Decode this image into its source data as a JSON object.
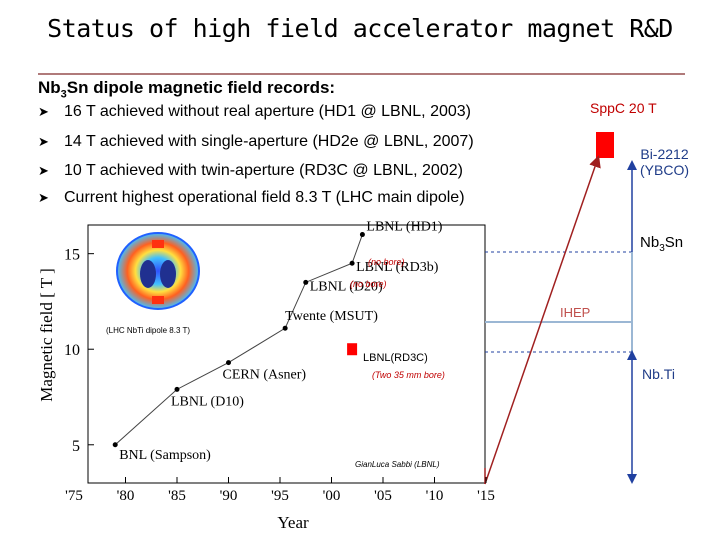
{
  "slide": {
    "title": "Status of high field accelerator magnet R&D",
    "subtitle_main": "Nb",
    "subtitle_sub": "3",
    "subtitle_rest": "Sn dipole magnetic field records:",
    "bullets": [
      "16 T achieved without real aperture (HD1 @ LBNL, 2003)",
      "14 T achieved with single-aperture (HD2e @ LBNL, 2007)",
      "10 T achieved with twin-aperture (RD3C @ LBNL, 2002)",
      "Current highest operational field 8.3 T (LHC main dipole)"
    ]
  },
  "right_panel": {
    "sppc": "SppC 20 T",
    "bi_line1": "Bi-2212",
    "bi_line2": "(YBCO)",
    "nb3sn_main": "Nb",
    "nb3sn_sub": "3",
    "nb3sn_rest": "Sn",
    "ihep": "IHEP",
    "nbti": "Nb.Ti",
    "colors": {
      "red": "#ff0000",
      "sppc_text": "#c00000",
      "blue_text": "#1f3c88",
      "ihep": "#c0504d"
    }
  },
  "chart_data": {
    "type": "scatter",
    "xlabel": "Year",
    "ylabel": "Magnetic field [ T ]",
    "x_ticks": [
      "'75",
      "'80",
      "'85",
      "'90",
      "'95",
      "'00",
      "'05",
      "'10",
      "'15"
    ],
    "y_ticks": [
      "5",
      "10",
      "15"
    ],
    "xlim": [
      1975,
      2015
    ],
    "ylim": [
      3,
      16.5
    ],
    "series": [
      {
        "points": [
          {
            "x": 1979,
            "y": 5.0,
            "label": "BNL (Sampson)"
          },
          {
            "x": 1985,
            "y": 7.9,
            "label": "LBNL (D10)"
          },
          {
            "x": 1990,
            "y": 9.3,
            "label": "CERN (Asner)"
          },
          {
            "x": 1995.5,
            "y": 11.1,
            "label": "Twente (MSUT)"
          },
          {
            "x": 1997.5,
            "y": 13.5,
            "label": "LBNL (D20)"
          },
          {
            "x": 2002,
            "y": 14.5,
            "label": "LBNL (RD3b)"
          },
          {
            "x": 2003,
            "y": 16.0,
            "label": "LBNL (HD1)"
          }
        ]
      }
    ],
    "highlight": {
      "x": 2002,
      "y": 10.0,
      "label": "LBNL(RD3C)",
      "note": "(Two 35 mm bore)"
    },
    "annotations": {
      "no_bore_1": "(no bore)",
      "no_bore_2": "(no bore)",
      "lhc": "(LHC NbTi dipole 8.3 T)",
      "credit": "GianLuca Sabbi (LBNL)"
    }
  }
}
